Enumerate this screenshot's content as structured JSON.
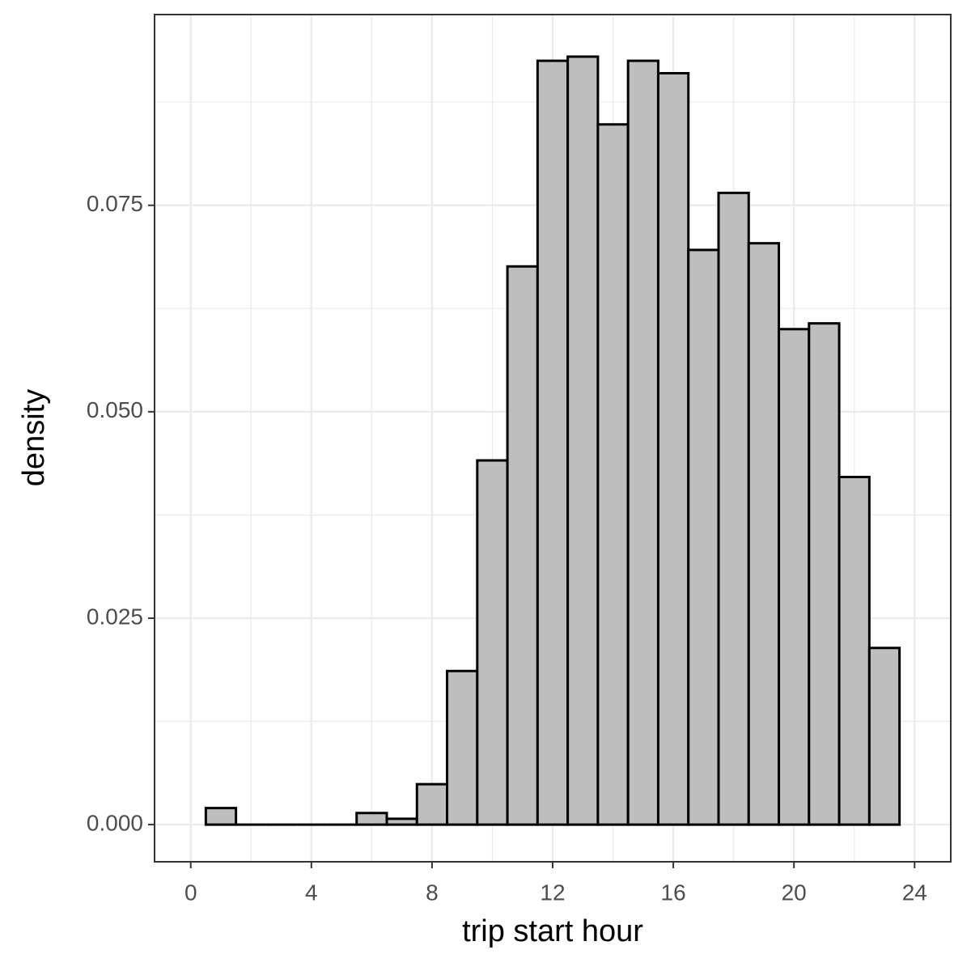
{
  "chart_data": {
    "type": "histogram",
    "x_label": "trip start hour",
    "y_label": "density",
    "bins": [
      0.5,
      1.5,
      2.5,
      3.5,
      4.5,
      5.5,
      6.5,
      7.5,
      8.5,
      9.5,
      10.5,
      11.5,
      12.5,
      13.5,
      14.5,
      15.5,
      16.5,
      17.5,
      18.5,
      19.5,
      20.5,
      21.5,
      22.5,
      23.5
    ],
    "counts": [
      0.002,
      0,
      0,
      0,
      0,
      0.0014,
      0.0007,
      0.0049,
      0.0186,
      0.0441,
      0.0676,
      0.0925,
      0.093,
      0.0848,
      0.0925,
      0.091,
      0.0696,
      0.0765,
      0.0704,
      0.06,
      0.0607,
      0.0421,
      0.0214
    ],
    "color": "#bebebe",
    "edge_color": "#000000",
    "xlim": [
      -1.2,
      25.2
    ],
    "xticks": [
      0,
      4,
      8,
      12,
      16,
      20,
      24
    ],
    "ylim": [
      -0.0045,
      0.0981
    ],
    "yticks": [
      {
        "value": 0,
        "label": "0.000"
      },
      0.025,
      {
        "value": 0.05,
        "label": "0.050"
      },
      0.075
    ],
    "grid": true,
    "minor_grid": true
  }
}
